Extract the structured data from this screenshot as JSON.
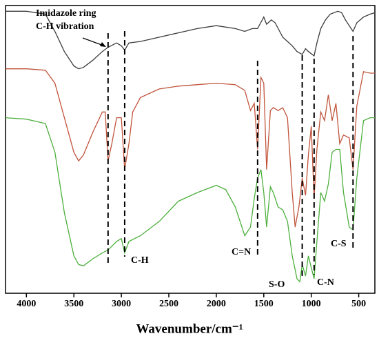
{
  "chart_data": {
    "type": "line",
    "xlabel": "Wavenumber/cm⁻¹",
    "xlim": [
      4220,
      330
    ],
    "ylim": [
      0,
      100
    ],
    "xticks": [
      4000,
      3500,
      3000,
      2500,
      2000,
      1500,
      1000,
      500
    ],
    "series": [
      {
        "color": "#3a3a3a",
        "x": [
          4220,
          4000,
          3800,
          3700,
          3600,
          3500,
          3450,
          3400,
          3300,
          3200,
          3140,
          3050,
          3000,
          2965,
          2920,
          2800,
          2600,
          2400,
          2200,
          2000,
          1800,
          1700,
          1620,
          1565,
          1500,
          1470,
          1420,
          1380,
          1300,
          1250,
          1200,
          1150,
          1095,
          1060,
          1030,
          970,
          940,
          900,
          850,
          800,
          720,
          680,
          640,
          600,
          560,
          520,
          450,
          380,
          330
        ],
        "values": [
          98,
          98,
          97,
          91,
          84,
          79,
          78,
          78.5,
          81,
          84,
          85.5,
          87,
          86,
          84.5,
          87,
          87.5,
          89,
          90.5,
          92,
          93,
          92,
          91,
          92,
          92,
          96,
          93.5,
          95,
          94,
          89,
          87.5,
          86,
          84,
          83,
          85,
          84,
          82.5,
          87,
          92,
          95,
          97,
          98,
          97.5,
          95,
          93,
          91,
          94,
          96,
          97,
          97.5
        ]
      },
      {
        "color": "#c0533a",
        "x": [
          4220,
          4000,
          3800,
          3700,
          3600,
          3500,
          3450,
          3400,
          3300,
          3200,
          3170,
          3140,
          3100,
          3050,
          3000,
          2965,
          2920,
          2880,
          2800,
          2600,
          2400,
          2200,
          2000,
          1800,
          1700,
          1640,
          1600,
          1565,
          1530,
          1500,
          1470,
          1430,
          1400,
          1350,
          1300,
          1250,
          1200,
          1170,
          1130,
          1095,
          1060,
          1030,
          1000,
          970,
          940,
          900,
          860,
          820,
          780,
          740,
          700,
          660,
          600,
          560,
          520,
          450,
          380,
          330
        ],
        "values": [
          78,
          78,
          77.5,
          73,
          61,
          49,
          46,
          48,
          56,
          63,
          63,
          46,
          52,
          61,
          61,
          43,
          52,
          63,
          68,
          71,
          72,
          72.5,
          73,
          72.5,
          70.5,
          63.5,
          66,
          50,
          75,
          73,
          43,
          63.5,
          64.5,
          63.5,
          64.5,
          61,
          35,
          23,
          30,
          40,
          34,
          48,
          58,
          33,
          50,
          63,
          60,
          69,
          60,
          66,
          52,
          55,
          54,
          43,
          65,
          77,
          76.5,
          76.5
        ]
      },
      {
        "color": "#4caf3c",
        "x": [
          4220,
          4000,
          3800,
          3700,
          3600,
          3500,
          3450,
          3400,
          3300,
          3200,
          3140,
          3050,
          3000,
          2965,
          2920,
          2800,
          2600,
          2400,
          2200,
          2000,
          1900,
          1800,
          1700,
          1640,
          1600,
          1565,
          1530,
          1500,
          1470,
          1430,
          1400,
          1350,
          1300,
          1250,
          1200,
          1150,
          1120,
          1095,
          1060,
          1030,
          970,
          940,
          900,
          860,
          820,
          780,
          740,
          700,
          660,
          600,
          560,
          520,
          450,
          380,
          330
        ],
        "values": [
          61,
          60.5,
          59,
          49,
          28,
          13,
          10,
          9.5,
          12,
          14,
          15,
          18,
          19,
          14,
          18,
          20,
          25,
          32,
          35,
          37.5,
          36,
          30,
          20,
          23,
          33,
          40,
          43,
          35,
          23,
          37,
          35,
          30,
          29,
          25,
          13,
          5,
          4,
          10,
          6,
          13,
          5,
          18,
          35,
          32,
          38,
          49,
          50,
          50,
          35,
          23,
          22,
          40,
          60,
          61,
          61
        ]
      }
    ],
    "markers": [
      3140,
      2965,
      1565,
      1095,
      970,
      560
    ],
    "annotations": [
      "Imidazole ring",
      "C-H vibration",
      "C-H",
      "C=N",
      "S-O",
      "C-N",
      "C-S"
    ]
  }
}
